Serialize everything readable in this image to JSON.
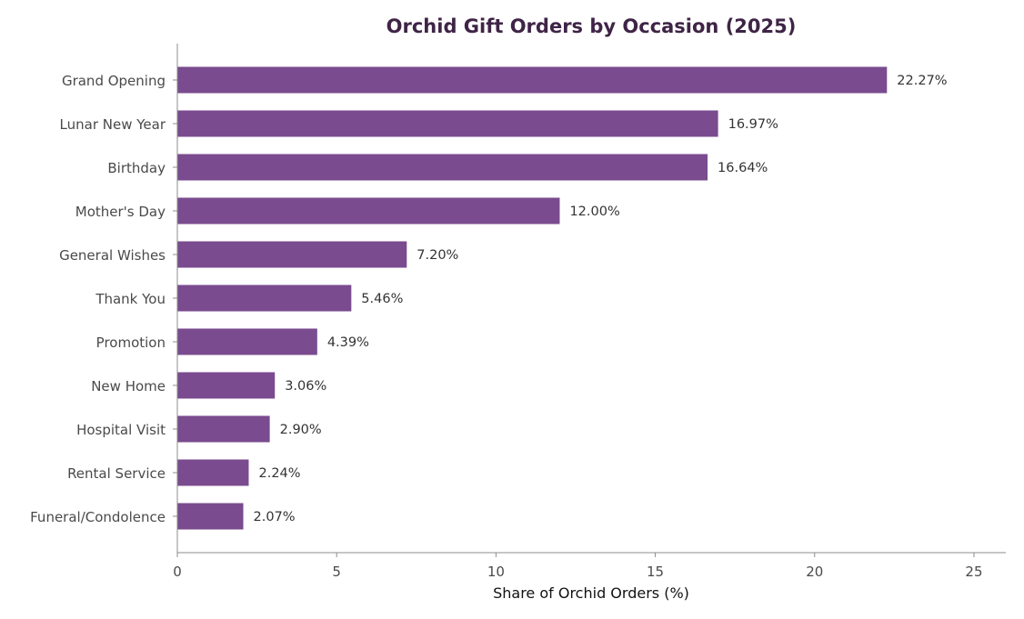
{
  "chart_data": {
    "type": "bar",
    "orientation": "horizontal",
    "title": "Orchid Gift Orders by Occasion (2025)",
    "xlabel": "Share of Orchid Orders (%)",
    "ylabel": "",
    "xlim": [
      0,
      26
    ],
    "xticks": [
      0,
      5,
      10,
      15,
      20,
      25
    ],
    "grid": false,
    "bar_color": "#7a4b8f",
    "categories": [
      "Grand Opening",
      "Lunar New Year",
      "Birthday",
      "Mother's Day",
      "General Wishes",
      "Thank You",
      "Promotion",
      "New Home",
      "Hospital Visit",
      "Rental Service",
      "Funeral/Condolence"
    ],
    "values": [
      22.27,
      16.97,
      16.64,
      12.0,
      7.2,
      5.46,
      4.39,
      3.06,
      2.9,
      2.24,
      2.07
    ],
    "value_labels": [
      "22.27%",
      "16.97%",
      "16.64%",
      "12.00%",
      "7.20%",
      "5.46%",
      "4.39%",
      "3.06%",
      "2.90%",
      "2.24%",
      "2.07%"
    ]
  }
}
